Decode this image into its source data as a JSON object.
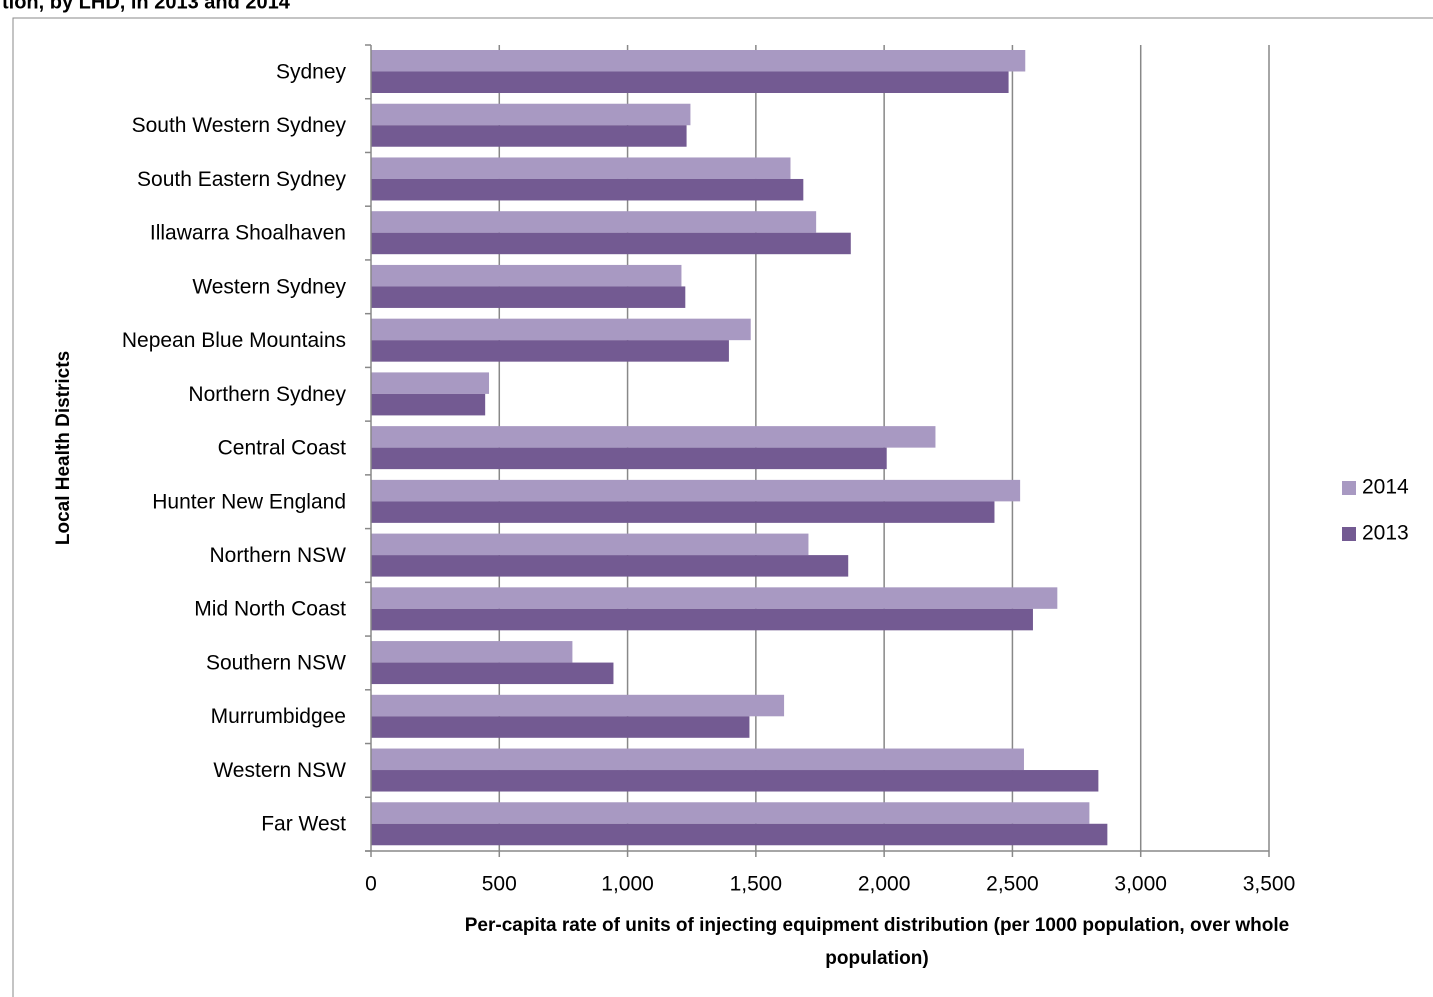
{
  "chart_data": {
    "type": "hbar",
    "title": "tion, by LHD, in 2013 and 2014",
    "x_label": "Per-capita rate of units of injecting equipment distribution (per 1000 population, over whole population)",
    "y_label": "Local Health Districts",
    "categories": [
      "Sydney",
      "South Western Sydney",
      "South Eastern Sydney",
      "Illawarra Shoalhaven",
      "Western Sydney",
      "Nepean Blue Mountains",
      "Northern Sydney",
      "Central Coast",
      "Hunter New England",
      "Northern NSW",
      "Mid North Coast",
      "Southern NSW",
      "Murrumbidgee",
      "Western NSW",
      "Far West"
    ],
    "series": [
      {
        "name": "2014",
        "color": "#a899c2",
        "values": [
          2550,
          1245,
          1635,
          1735,
          1210,
          1480,
          460,
          2200,
          2530,
          1705,
          2675,
          785,
          1610,
          2545,
          2800
        ]
      },
      {
        "name": "2013",
        "color": "#735a92",
        "values": [
          2485,
          1230,
          1685,
          1870,
          1225,
          1395,
          445,
          2010,
          2430,
          1860,
          2580,
          945,
          1475,
          2835,
          2870
        ]
      }
    ],
    "xlim": [
      0,
      3500
    ],
    "xticks": [
      0,
      500,
      {
        "value": 1000,
        "label": "1,000"
      },
      {
        "value": 1500,
        "label": "1,500"
      },
      {
        "value": 2000,
        "label": "2,000"
      },
      {
        "value": 2500,
        "label": "2,500"
      },
      {
        "value": 3000,
        "label": "3,000"
      },
      {
        "value": 3500,
        "label": "3,500"
      }
    ],
    "grid": true,
    "legend": "right"
  }
}
